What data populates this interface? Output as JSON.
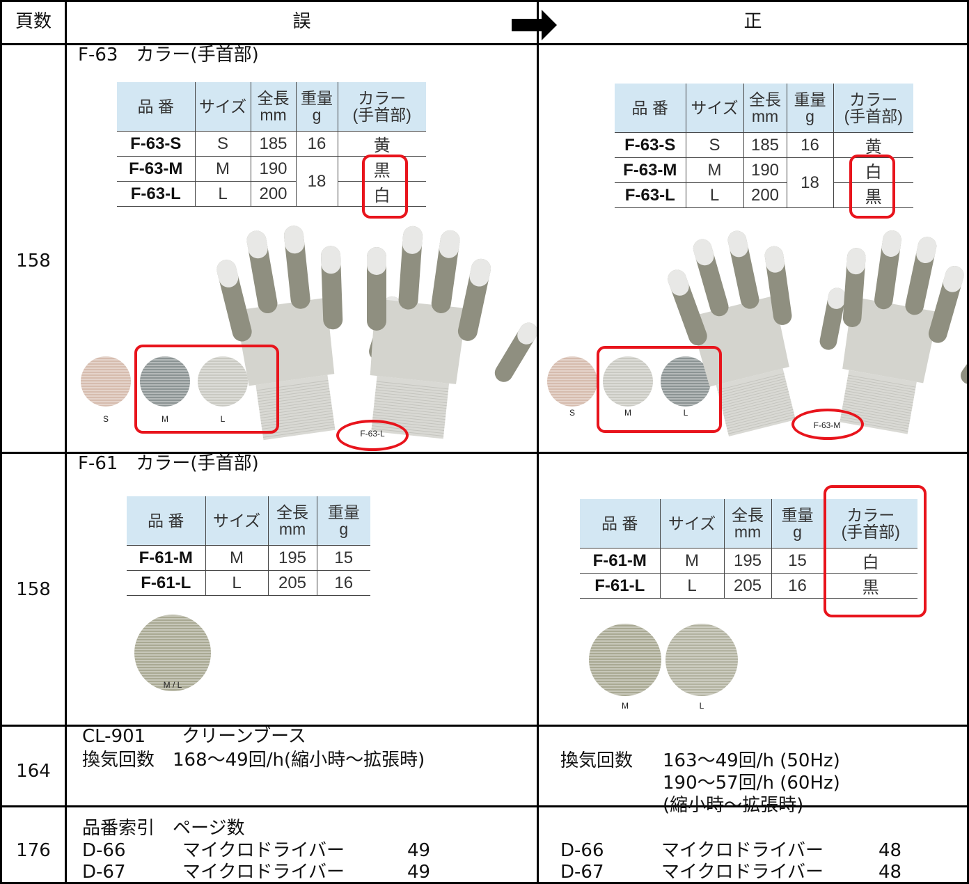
{
  "header": {
    "page": "頁数",
    "wrong": "誤",
    "correct": "正"
  },
  "rows": [
    {
      "page": "158",
      "wrong": {
        "heading": "F-63　カラー(手首部)",
        "table": {
          "columns": [
            [
              "品 番"
            ],
            [
              "サイズ"
            ],
            [
              "全長",
              "mm"
            ],
            [
              "重量",
              "g"
            ],
            [
              "カラー",
              "(手首部)"
            ]
          ],
          "rows": [
            {
              "code": "F-63-S",
              "size": "S",
              "length": "185",
              "weight": "16",
              "color": "黄"
            },
            {
              "code": "F-63-M",
              "size": "M",
              "length": "190",
              "weight": "18",
              "color": "黒"
            },
            {
              "code": "F-63-L",
              "size": "L",
              "length": "200",
              "color": "白"
            }
          ]
        },
        "swatches": [
          "S",
          "M",
          "L"
        ],
        "glove_label": "F-63-L"
      },
      "correct": {
        "table": {
          "columns": [
            [
              "品 番"
            ],
            [
              "サイズ"
            ],
            [
              "全長",
              "mm"
            ],
            [
              "重量",
              "g"
            ],
            [
              "カラー",
              "(手首部)"
            ]
          ],
          "rows": [
            {
              "code": "F-63-S",
              "size": "S",
              "length": "185",
              "weight": "16",
              "color": "黄"
            },
            {
              "code": "F-63-M",
              "size": "M",
              "length": "190",
              "weight": "18",
              "color": "白"
            },
            {
              "code": "F-63-L",
              "size": "L",
              "length": "200",
              "color": "黒"
            }
          ]
        },
        "swatches": [
          "S",
          "M",
          "L"
        ],
        "glove_label": "F-63-M"
      }
    },
    {
      "page": "158",
      "wrong": {
        "heading": "F-61　カラー(手首部)",
        "table": {
          "columns": [
            [
              "品 番"
            ],
            [
              "サイズ"
            ],
            [
              "全長",
              "mm"
            ],
            [
              "重量",
              "g"
            ]
          ],
          "rows": [
            {
              "code": "F-61-M",
              "size": "M",
              "length": "195",
              "weight": "15"
            },
            {
              "code": "F-61-L",
              "size": "L",
              "length": "205",
              "weight": "16"
            }
          ]
        },
        "swatches": [
          "M / L"
        ]
      },
      "correct": {
        "table": {
          "columns": [
            [
              "品 番"
            ],
            [
              "サイズ"
            ],
            [
              "全長",
              "mm"
            ],
            [
              "重量",
              "g"
            ],
            [
              "カラー",
              "(手首部)"
            ]
          ],
          "rows": [
            {
              "code": "F-61-M",
              "size": "M",
              "length": "195",
              "weight": "15",
              "color": "白"
            },
            {
              "code": "F-61-L",
              "size": "L",
              "length": "205",
              "weight": "16",
              "color": "黒"
            }
          ]
        },
        "swatches": [
          "M",
          "L"
        ]
      }
    },
    {
      "page": "164",
      "wrong": {
        "lines": [
          "CL-901　　クリーンブース",
          "換気回数　168～49回/h(縮小時～拡張時)"
        ]
      },
      "correct": {
        "label": "換気回数",
        "lines": [
          "163～49回/h (50Hz)",
          "190～57回/h (60Hz)",
          "(縮小時～拡張時)"
        ]
      }
    },
    {
      "page": "176",
      "wrong": {
        "heading": "品番索引　ページ数",
        "entries": [
          {
            "code": "D-66",
            "name": "マイクロドライバー",
            "page": "49"
          },
          {
            "code": "D-67",
            "name": "マイクロドライバー",
            "page": "49"
          }
        ]
      },
      "correct": {
        "entries": [
          {
            "code": "D-66",
            "name": "マイクロドライバー",
            "page": "48"
          },
          {
            "code": "D-67",
            "name": "マイクロドライバー",
            "page": "48"
          }
        ]
      }
    }
  ]
}
